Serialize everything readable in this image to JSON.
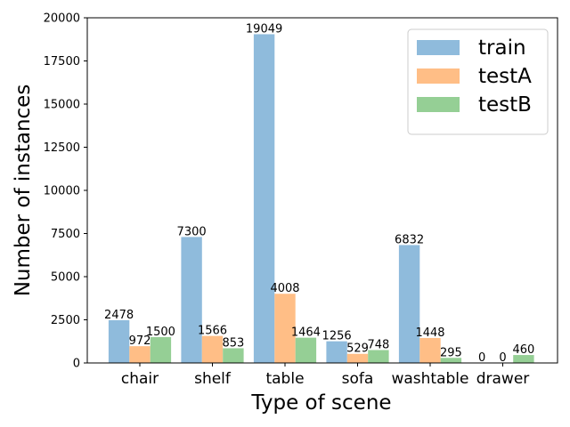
{
  "chart_data": {
    "type": "bar",
    "title": "",
    "xlabel": "Type of scene",
    "ylabel": "Number of instances",
    "categories": [
      "chair",
      "shelf",
      "table",
      "sofa",
      "washtable",
      "drawer"
    ],
    "series": [
      {
        "name": "train",
        "values": [
          2478,
          7300,
          19049,
          1256,
          6832,
          0
        ],
        "color": "#8fbbdc"
      },
      {
        "name": "testA",
        "values": [
          972,
          1566,
          4008,
          529,
          1448,
          0
        ],
        "color": "#ffbe86"
      },
      {
        "name": "testB",
        "values": [
          1500,
          853,
          1464,
          748,
          295,
          460
        ],
        "color": "#95cf95"
      }
    ],
    "ylim": [
      0,
      20000
    ],
    "yticks": [
      0,
      2500,
      5000,
      7500,
      10000,
      12500,
      15000,
      17500,
      20000
    ],
    "grid": false,
    "legend_position": "top-right"
  }
}
